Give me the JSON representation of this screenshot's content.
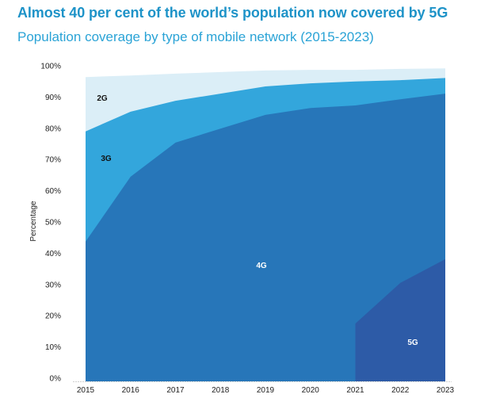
{
  "header": {
    "title": "Almost 40 per cent of the world’s population now covered by 5G",
    "subtitle": "Population coverage by type of mobile network (2015-2023)"
  },
  "chart_data": {
    "type": "area",
    "stacked": true,
    "title": "Almost 40 per cent of the world’s population now covered by 5G",
    "subtitle": "Population coverage by type of mobile network (2015-2023)",
    "xlabel": "",
    "ylabel": "Percentage",
    "x": [
      "2015",
      "2016",
      "2017",
      "2018",
      "2019",
      "2020",
      "2021",
      "2022",
      "2023"
    ],
    "ylim": [
      0,
      100
    ],
    "yticks": [
      "0%",
      "10%",
      "20%",
      "30%",
      "40%",
      "50%",
      "60%",
      "70%",
      "80%",
      "90%",
      "100%"
    ],
    "value_mode": "cumulative coverage (% of population covered by at least this network type)",
    "series": [
      {
        "name": "2G",
        "color": "#dbeef7",
        "label_color": "#111111",
        "values": [
          96.4,
          96.9,
          97.5,
          98.0,
          98.5,
          98.7,
          98.7,
          99.0,
          99.2
        ]
      },
      {
        "name": "3G",
        "color": "#33a6dc",
        "label_color": "#111111",
        "values": [
          79.0,
          85.3,
          88.8,
          91.1,
          93.4,
          94.4,
          95.0,
          95.4,
          96.1
        ]
      },
      {
        "name": "4G",
        "color": "#2776b9",
        "label_color": "#ffffff",
        "values": [
          43.7,
          64.5,
          75.4,
          79.9,
          84.3,
          86.5,
          87.3,
          89.3,
          91.1
        ]
      },
      {
        "name": "5G",
        "color": "#2d5ba7",
        "label_color": "#ffffff",
        "values": [
          null,
          null,
          null,
          null,
          null,
          null,
          17.5,
          30.5,
          38.1
        ]
      }
    ],
    "grid": false,
    "legend": "inline labels"
  }
}
